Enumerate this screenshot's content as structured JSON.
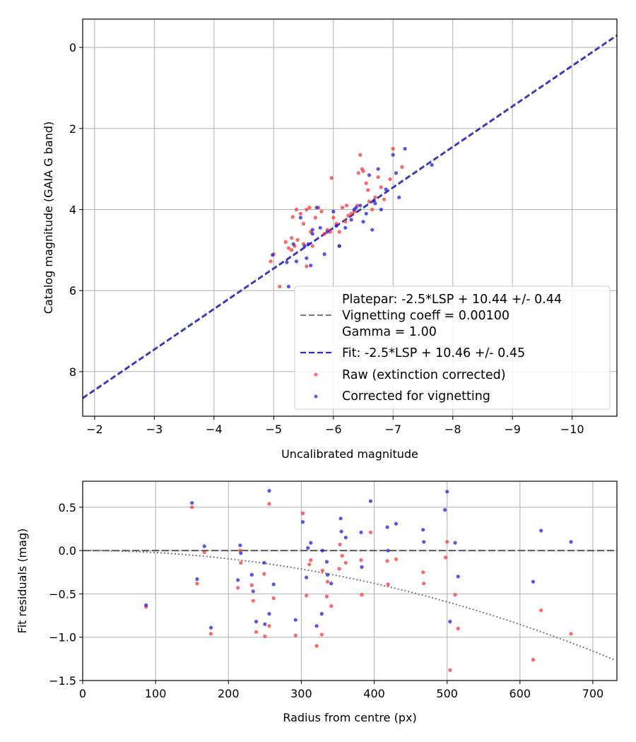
{
  "chart_data": [
    {
      "type": "scatter",
      "xlabel": "Uncalibrated magnitude",
      "ylabel": "Catalog magnitude (GAIA G band)",
      "xlim": [
        -1.8,
        -10.75
      ],
      "ylim": [
        9.1,
        -0.7
      ],
      "x_inverted": true,
      "y_inverted": true,
      "grid": true,
      "legend_position": "lower right",
      "x_ticks": [
        {
          "value": -2,
          "label": "−2"
        },
        {
          "value": -3,
          "label": "−3"
        },
        {
          "value": -4,
          "label": "−4"
        },
        {
          "value": -5,
          "label": "−5"
        },
        {
          "value": -6,
          "label": "−6"
        },
        {
          "value": -7,
          "label": "−7"
        },
        {
          "value": -8,
          "label": "−8"
        },
        {
          "value": -9,
          "label": "−9"
        },
        {
          "value": -10,
          "label": "−10"
        }
      ],
      "y_ticks": [
        {
          "value": 0,
          "label": "0"
        },
        {
          "value": 2,
          "label": "2"
        },
        {
          "value": 4,
          "label": "4"
        },
        {
          "value": 6,
          "label": "6"
        },
        {
          "value": 8,
          "label": "8"
        }
      ],
      "lines": [
        {
          "name": "Platepar: -2.5*LSP + 10.44 +/- 0.44",
          "slope": 1.0,
          "offset": 10.44,
          "color": "#7f7f7f",
          "dash": "8,4"
        },
        {
          "name": "Fit: -2.5*LSP + 10.46 +/- 0.45",
          "slope": 1.0,
          "offset": 10.46,
          "color": "#2b2bd6",
          "dash": "8,4"
        }
      ],
      "series": [
        {
          "name": "Raw (extinction corrected)",
          "color": "#ff3333",
          "points": [
            [
              -4.95,
              5.28
            ],
            [
              -5.0,
              5.1
            ],
            [
              -5.1,
              5.9
            ],
            [
              -5.2,
              4.8
            ],
            [
              -5.25,
              4.95
            ],
            [
              -5.3,
              4.7
            ],
            [
              -5.32,
              4.18
            ],
            [
              -5.35,
              4.9
            ],
            [
              -5.38,
              4.0
            ],
            [
              -5.4,
              4.75
            ],
            [
              -5.45,
              4.1
            ],
            [
              -5.5,
              4.85
            ],
            [
              -5.5,
              4.35
            ],
            [
              -5.55,
              5.4
            ],
            [
              -5.6,
              3.95
            ],
            [
              -5.62,
              4.55
            ],
            [
              -5.65,
              4.9
            ],
            [
              -5.7,
              4.2
            ],
            [
              -5.75,
              3.95
            ],
            [
              -5.8,
              4.05
            ],
            [
              -5.85,
              4.6
            ],
            [
              -5.9,
              4.5
            ],
            [
              -5.95,
              4.55
            ],
            [
              -5.97,
              3.22
            ],
            [
              -6.0,
              4.2
            ],
            [
              -6.05,
              4.35
            ],
            [
              -6.1,
              4.55
            ],
            [
              -6.1,
              4.9
            ],
            [
              -6.15,
              3.95
            ],
            [
              -6.2,
              4.3
            ],
            [
              -6.22,
              3.9
            ],
            [
              -6.25,
              4.15
            ],
            [
              -6.3,
              4.1
            ],
            [
              -6.35,
              4.05
            ],
            [
              -6.4,
              3.9
            ],
            [
              -6.42,
              3.1
            ],
            [
              -6.45,
              2.65
            ],
            [
              -6.48,
              3.0
            ],
            [
              -6.5,
              3.05
            ],
            [
              -6.55,
              3.35
            ],
            [
              -6.6,
              3.8
            ],
            [
              -6.65,
              4.0
            ],
            [
              -6.7,
              3.7
            ],
            [
              -6.75,
              3.2
            ],
            [
              -6.8,
              3.45
            ],
            [
              -6.85,
              3.75
            ],
            [
              -6.95,
              3.25
            ],
            [
              -7.0,
              2.5
            ],
            [
              -7.15,
              2.95
            ],
            [
              -5.3,
              5.0
            ],
            [
              -5.55,
              4.0
            ],
            [
              -6.58,
              3.52
            ]
          ]
        },
        {
          "name": "Corrected for vignetting",
          "color": "#1f1fdd",
          "points": [
            [
              -4.98,
              5.12
            ],
            [
              -5.22,
              5.3
            ],
            [
              -5.25,
              5.9
            ],
            [
              -5.33,
              4.85
            ],
            [
              -5.38,
              5.28
            ],
            [
              -5.45,
              4.2
            ],
            [
              -5.52,
              4.9
            ],
            [
              -5.55,
              5.2
            ],
            [
              -5.58,
              4.85
            ],
            [
              -5.62,
              5.38
            ],
            [
              -5.65,
              4.6
            ],
            [
              -5.72,
              3.95
            ],
            [
              -5.78,
              4.45
            ],
            [
              -5.85,
              5.1
            ],
            [
              -5.9,
              4.55
            ],
            [
              -6.0,
              4.05
            ],
            [
              -6.05,
              4.4
            ],
            [
              -6.1,
              4.9
            ],
            [
              -6.2,
              4.45
            ],
            [
              -6.3,
              4.25
            ],
            [
              -6.35,
              4.0
            ],
            [
              -6.45,
              3.9
            ],
            [
              -6.5,
              4.3
            ],
            [
              -6.55,
              4.1
            ],
            [
              -6.6,
              3.15
            ],
            [
              -6.65,
              4.5
            ],
            [
              -6.7,
              3.85
            ],
            [
              -6.75,
              3.0
            ],
            [
              -6.8,
              4.0
            ],
            [
              -6.88,
              3.5
            ],
            [
              -7.0,
              2.65
            ],
            [
              -7.05,
              3.1
            ],
            [
              -7.1,
              3.7
            ],
            [
              -7.2,
              2.5
            ],
            [
              -7.65,
              2.9
            ],
            [
              -5.65,
              4.5
            ],
            [
              -6.38,
              3.95
            ],
            [
              -6.68,
              3.78
            ]
          ]
        }
      ]
    },
    {
      "type": "scatter",
      "xlabel": "Radius from centre (px)",
      "ylabel": "Fit residuals (mag)",
      "xlim": [
        0,
        733
      ],
      "ylim": [
        -1.5,
        0.8
      ],
      "grid": true,
      "x_ticks": [
        {
          "value": 0,
          "label": "0"
        },
        {
          "value": 100,
          "label": "100"
        },
        {
          "value": 200,
          "label": "200"
        },
        {
          "value": 300,
          "label": "300"
        },
        {
          "value": 400,
          "label": "400"
        },
        {
          "value": 500,
          "label": "500"
        },
        {
          "value": 600,
          "label": "600"
        },
        {
          "value": 700,
          "label": "700"
        }
      ],
      "y_ticks": [
        {
          "value": 0.5,
          "label": "0.5"
        },
        {
          "value": 0.0,
          "label": "0.0"
        },
        {
          "value": -0.5,
          "label": "−0.5"
        },
        {
          "value": -1.0,
          "label": "−1.0"
        },
        {
          "value": -1.5,
          "label": "−1.5"
        }
      ],
      "lines": [
        {
          "type": "horizontal",
          "value": 0.0,
          "color": "#555555",
          "dash": "10,4"
        },
        {
          "type": "quadratic",
          "coeff": -2.37e-06,
          "color": "#777777",
          "dash": "2,3"
        }
      ],
      "series": [
        {
          "name": "Raw (extinction corrected)",
          "color": "#ff3333",
          "points": [
            [
              87,
              -0.65
            ],
            [
              150,
              0.5
            ],
            [
              157,
              -0.38
            ],
            [
              167,
              -0.02
            ],
            [
              176,
              -0.96
            ],
            [
              213,
              -0.43
            ],
            [
              216,
              0.0
            ],
            [
              217,
              -0.14
            ],
            [
              232,
              -0.4
            ],
            [
              234,
              -0.58
            ],
            [
              238,
              -0.94
            ],
            [
              249,
              -0.27
            ],
            [
              250,
              -0.99
            ],
            [
              256,
              0.54
            ],
            [
              256,
              -0.87
            ],
            [
              262,
              -0.55
            ],
            [
              292,
              -0.98
            ],
            [
              302,
              0.43
            ],
            [
              307,
              -0.52
            ],
            [
              311,
              -0.16
            ],
            [
              313,
              -0.11
            ],
            [
              321,
              -1.1
            ],
            [
              328,
              -0.97
            ],
            [
              329,
              -0.23
            ],
            [
              335,
              -0.53
            ],
            [
              336,
              -0.36
            ],
            [
              341,
              -0.64
            ],
            [
              352,
              -0.21
            ],
            [
              353,
              0.07
            ],
            [
              356,
              -0.06
            ],
            [
              361,
              -0.14
            ],
            [
              382,
              -0.11
            ],
            [
              383,
              -0.51
            ],
            [
              395,
              0.21
            ],
            [
              418,
              -0.12
            ],
            [
              419,
              -0.39
            ],
            [
              430,
              -0.1
            ],
            [
              467,
              -0.25
            ],
            [
              468,
              -0.38
            ],
            [
              498,
              -0.08
            ],
            [
              500,
              0.1
            ],
            [
              504,
              -1.38
            ],
            [
              511,
              -0.51
            ],
            [
              515,
              -0.9
            ],
            [
              618,
              -1.26
            ],
            [
              629,
              -0.69
            ],
            [
              670,
              -0.96
            ]
          ]
        },
        {
          "name": "Corrected for vignetting",
          "color": "#1f1fdd",
          "points": [
            [
              87,
              -0.63
            ],
            [
              150,
              0.55
            ],
            [
              157,
              -0.33
            ],
            [
              167,
              0.05
            ],
            [
              176,
              -0.89
            ],
            [
              213,
              -0.34
            ],
            [
              216,
              0.06
            ],
            [
              217,
              -0.03
            ],
            [
              232,
              -0.28
            ],
            [
              234,
              -0.47
            ],
            [
              238,
              -0.82
            ],
            [
              249,
              -0.14
            ],
            [
              250,
              -0.85
            ],
            [
              256,
              0.69
            ],
            [
              256,
              -0.73
            ],
            [
              262,
              -0.39
            ],
            [
              292,
              -0.8
            ],
            [
              302,
              0.33
            ],
            [
              307,
              -0.31
            ],
            [
              309,
              0.03
            ],
            [
              313,
              0.09
            ],
            [
              321,
              -0.87
            ],
            [
              328,
              -0.73
            ],
            [
              329,
              0.0
            ],
            [
              335,
              -0.13
            ],
            [
              336,
              -0.28
            ],
            [
              341,
              -0.38
            ],
            [
              354,
              0.37
            ],
            [
              355,
              0.22
            ],
            [
              361,
              0.15
            ],
            [
              382,
              0.21
            ],
            [
              383,
              -0.19
            ],
            [
              395,
              0.57
            ],
            [
              418,
              0.27
            ],
            [
              419,
              0.0
            ],
            [
              430,
              0.31
            ],
            [
              467,
              0.24
            ],
            [
              468,
              0.1
            ],
            [
              497,
              0.47
            ],
            [
              500,
              0.68
            ],
            [
              504,
              -0.82
            ],
            [
              511,
              0.09
            ],
            [
              515,
              -0.3
            ],
            [
              618,
              -0.36
            ],
            [
              629,
              0.23
            ],
            [
              670,
              0.1
            ]
          ]
        }
      ]
    }
  ],
  "legend": {
    "entries": [
      {
        "text": "Platepar: -2.5*LSP + 10.44 +/- 0.44"
      },
      {
        "text": "Vignetting coeff = 0.00100"
      },
      {
        "text": "Gamma = 1.00"
      },
      {
        "text": "Fit: -2.5*LSP + 10.46 +/- 0.45"
      },
      {
        "text": "Raw (extinction corrected)"
      },
      {
        "text": "Corrected for vignetting"
      }
    ]
  }
}
